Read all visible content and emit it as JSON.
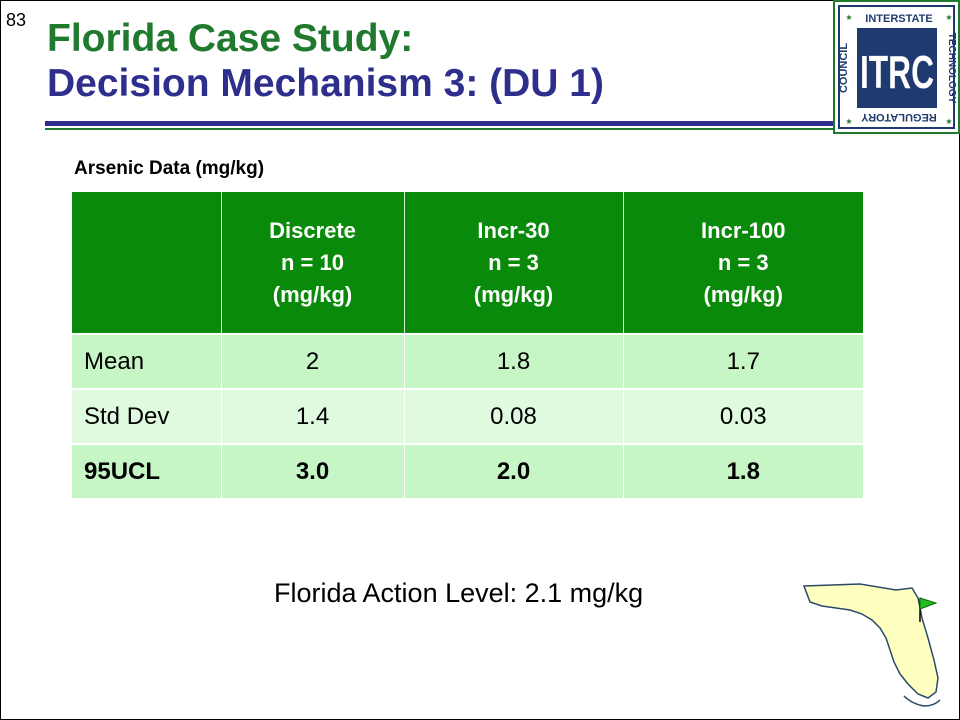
{
  "slide": {
    "number": "83"
  },
  "title": {
    "line1": "Florida Case Study:",
    "line2": "Decision Mechanism 3: (DU 1)"
  },
  "logo": {
    "letters": "ITRC",
    "ring_top": "INTERSTATE",
    "ring_right": "TECHNOLOGY",
    "ring_bottom": "REGULATORY",
    "ring_left": "COUNCIL",
    "icon": "itrc-logo"
  },
  "subtitle": "Arsenic Data (mg/kg)",
  "table": {
    "columns": [
      {
        "line1": "",
        "line2": "",
        "line3": ""
      },
      {
        "line1": "Discrete",
        "line2": "n = 10",
        "line3": "(mg/kg)"
      },
      {
        "line1": "Incr-30",
        "line2": "n = 3",
        "line3": "(mg/kg)"
      },
      {
        "line1": "Incr-100",
        "line2": "n = 3",
        "line3": "(mg/kg)"
      }
    ],
    "rows": [
      {
        "label": "Mean",
        "values": [
          "2",
          "1.8",
          "1.7"
        ]
      },
      {
        "label": "Std Dev",
        "values": [
          "1.4",
          "0.08",
          "0.03"
        ]
      },
      {
        "label": "95UCL",
        "values": [
          "3.0",
          "2.0",
          "1.8"
        ]
      }
    ]
  },
  "action_level": "Florida Action Level: 2.1 mg/kg",
  "map": {
    "icon": "florida-map-icon",
    "flag_icon": "flag-icon"
  },
  "colors": {
    "title_green": "#1f7a2e",
    "title_navy": "#2e2e8c",
    "header_green": "#0a8a0a",
    "row_light": "#c6f5c6",
    "row_lighter": "#dffadf",
    "logo_navy": "#1f3a6e"
  }
}
